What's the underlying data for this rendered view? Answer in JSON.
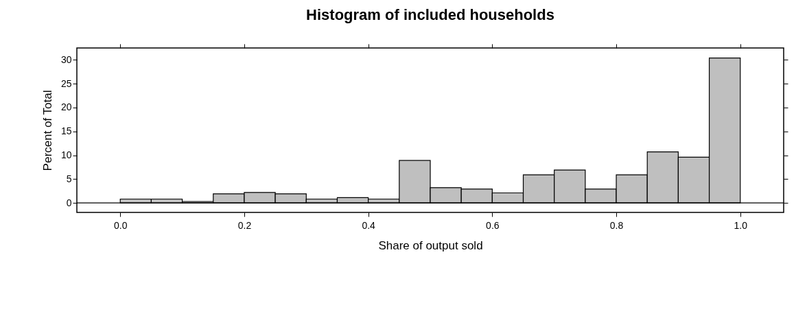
{
  "chart_data": {
    "type": "histogram",
    "title": "Histogram of included households",
    "xlabel": "Share of output sold",
    "ylabel": "Percent of Total",
    "bins": [
      0.0,
      0.05,
      0.1,
      0.15,
      0.2,
      0.25,
      0.3,
      0.35,
      0.4,
      0.45,
      0.5,
      0.55,
      0.6,
      0.65,
      0.7,
      0.75,
      0.8,
      0.85,
      0.9,
      0.95,
      1.0
    ],
    "values": [
      0.8,
      0.8,
      0.3,
      1.9,
      2.2,
      1.9,
      0.8,
      1.1,
      0.8,
      8.9,
      3.2,
      2.9,
      2.1,
      5.9,
      6.9,
      2.9,
      5.9,
      10.7,
      9.6,
      30.4
    ],
    "color": "#bfbfbf",
    "xlim": [
      -0.07,
      1.07
    ],
    "xticks": [
      {
        "value": 0,
        "label": "0.0"
      },
      0.2,
      0.4,
      0.6,
      0.8,
      {
        "value": 1,
        "label": "1.0"
      }
    ],
    "ylim": [
      -2,
      32.5
    ],
    "yticks": [
      0,
      5,
      10,
      15,
      20,
      25,
      30
    ],
    "ref_lines": [
      {
        "axis": "y",
        "value": 0,
        "color": "#000000"
      }
    ],
    "grid": false
  }
}
